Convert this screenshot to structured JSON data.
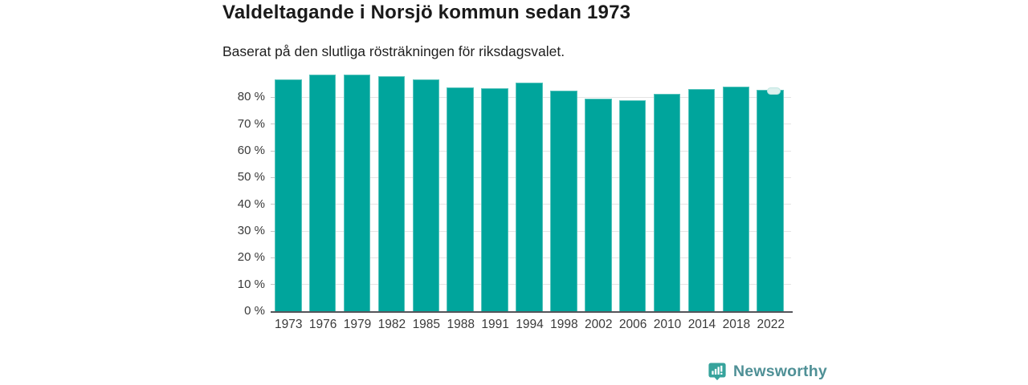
{
  "header": {
    "title": "Valdeltagande i Norsjö kommun sedan 1973",
    "subtitle": "Baserat på den slutliga rösträkningen för riksdagsvalet."
  },
  "chart_data": {
    "type": "bar",
    "title": "Valdeltagande i Norsjö kommun sedan 1973",
    "subtitle": "Baserat på den slutliga rösträkningen för riksdagsvalet.",
    "categories": [
      "1973",
      "1976",
      "1979",
      "1982",
      "1985",
      "1988",
      "1991",
      "1994",
      "1998",
      "2002",
      "2006",
      "2010",
      "2014",
      "2018",
      "2022"
    ],
    "values": [
      86.8,
      88.4,
      88.6,
      87.9,
      86.7,
      83.8,
      83.4,
      85.6,
      82.5,
      79.4,
      78.8,
      81.3,
      83.0,
      84.0,
      82.9
    ],
    "unit": "%",
    "xlabel": "",
    "ylabel": "",
    "ylim": [
      0,
      90
    ],
    "yticks": [
      {
        "value": 0,
        "label": "0 %"
      },
      {
        "value": 10,
        "label": "10 %"
      },
      {
        "value": 20,
        "label": "20 %"
      },
      {
        "value": 30,
        "label": "30 %"
      },
      {
        "value": 40,
        "label": "40 %"
      },
      {
        "value": 50,
        "label": "50 %"
      },
      {
        "value": 60,
        "label": "60 %"
      },
      {
        "value": 70,
        "label": "70 %"
      },
      {
        "value": 80,
        "label": "80 %"
      }
    ],
    "grid": true,
    "legend": "none",
    "colors": {
      "bar_fill": "#00a59c",
      "bar_edge": "#56c3bb",
      "gridline": "#e4e4e4",
      "tick": "#c4c4c4",
      "axis_line": "#55555a",
      "axis_label": "#3a3a3a"
    },
    "annotation": {
      "category": "2022",
      "marker": "rounded-pill-cap",
      "fill": "#ddf1ee",
      "border": "#bfe6e1"
    }
  },
  "branding": {
    "logo_text": "Newsworthy",
    "icon": "newsworthy-speech-bubble-chart-icon",
    "icon_color": "#36a39c",
    "text_color": "#4f9096"
  }
}
